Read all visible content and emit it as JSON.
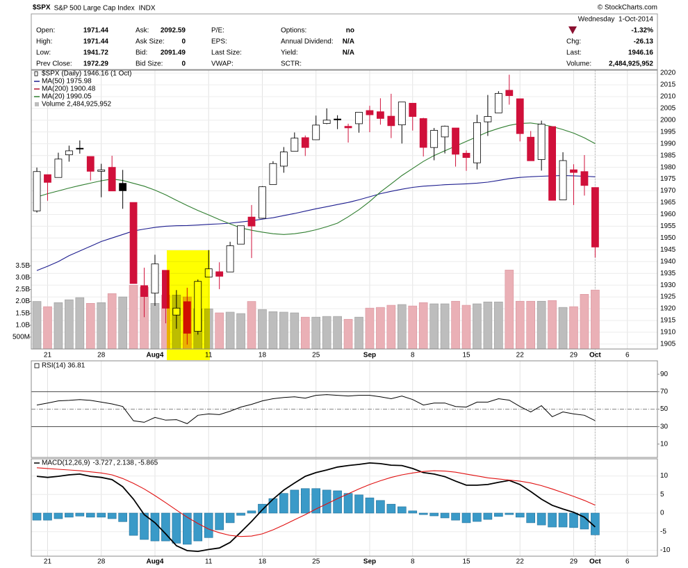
{
  "header": {
    "symbol": "$SPX",
    "name": "S&P 500 Large Cap Index",
    "exchange": "INDX",
    "credit": "© StockCharts.com"
  },
  "quote": {
    "columns": [
      [
        [
          "Open:",
          "1971.44"
        ],
        [
          "High:",
          "1971.44"
        ],
        [
          "Low:",
          "1941.72"
        ],
        [
          "Prev Close:",
          "1972.29"
        ]
      ],
      [
        [
          "Ask:",
          "2092.59"
        ],
        [
          "Ask Size:",
          "0"
        ],
        [
          "Bid:",
          "2091.49"
        ],
        [
          "Bid Size:",
          "0"
        ]
      ],
      [
        [
          "P/E:"
        ],
        [
          "EPS:"
        ],
        [
          "Last Size:"
        ],
        [
          "VWAP:"
        ]
      ],
      [
        [
          "Options:",
          "no"
        ],
        [
          "Annual Dividend:",
          "N/A"
        ],
        [
          "Yield:",
          "N/A"
        ],
        [
          "SCTR:"
        ]
      ]
    ],
    "date": "Wednesday  1-Oct-2014",
    "change_pct": "-1.32%",
    "stats": [
      [
        "Chg:",
        "-26.13"
      ],
      [
        "Last:",
        "1946.16"
      ],
      [
        "Volume:",
        "2,484,925,952"
      ]
    ]
  },
  "chart_data": [
    {
      "type": "candlestick",
      "legend": "$SPX (Daily) 1946.16 (1 Oct)",
      "open": [
        1961.5,
        1976.9,
        1975.7,
        1985.3,
        1988.1,
        1984.6,
        1978.3,
        1980.0,
        1973.2,
        1965.1,
        1929.8,
        1926.6,
        1936.3,
        1917.3,
        1923.0,
        1910.4,
        1933.4,
        1935.7,
        1935.6,
        1947.4,
        1958.9,
        1958.4,
        1972.7,
        1980.5,
        1986.8,
        1992.6,
        1991.7,
        1998.6,
        2000.5,
        1997.4,
        1998.5,
        2004.1,
        2003.6,
        2001.7,
        1998.0,
        2007.2,
        2000.7,
        1988.4,
        1992.9,
        1996.7,
        1986.0,
        1981.9,
        1999.3,
        2003.1,
        2012.7,
        2009.1,
        1992.8,
        1983.3,
        1997.3,
        1966.2,
        1978.96,
        1978.2,
        1971.44
      ],
      "high": [
        1979.9,
        1976.9,
        1986.2,
        1989.2,
        1991.4,
        1984.6,
        1981.5,
        1984.9,
        1978.9,
        1965.1,
        1937.4,
        1942.9,
        1936.3,
        1927.9,
        1928.9,
        1932.4,
        1944.9,
        1939.7,
        1948.4,
        1955.2,
        1964.0,
        1971.99,
        1982.6,
        1988.6,
        1994.8,
        1993.5,
        2001.95,
        2005.0,
        2002.1,
        1998.5,
        2003.4,
        2006.1,
        2009.3,
        2011.2,
        2007.7,
        2007.2,
        2001.0,
        1996.7,
        1997.7,
        1996.7,
        1987.2,
        2002.3,
        2010.7,
        2012.3,
        2019.3,
        2009.1,
        1995.4,
        1999.8,
        1997.3,
        1986.4,
        1981.3,
        1985.2,
        1971.44
      ],
      "low": [
        1960.8,
        1965.8,
        1975.7,
        1982.4,
        1985.8,
        1974.4,
        1967.3,
        1969.95,
        1962.4,
        1930.7,
        1916.4,
        1921.2,
        1913.8,
        1911.5,
        1904.8,
        1909.0,
        1933.4,
        1928.3,
        1935.6,
        1947.4,
        1941.5,
        1958.4,
        1972.7,
        1977.7,
        1986.8,
        1984.8,
        1991.7,
        1998.3,
        1996.2,
        1990.5,
        1994.7,
        1994.9,
        1998.1,
        1992.4,
        1990.1,
        1995.6,
        1984.6,
        1982.99,
        1985.9,
        1980.3,
        1978.5,
        1979.1,
        1993.3,
        2003.1,
        2006.6,
        1991.0,
        1982.8,
        1978.6,
        1965.99,
        1966.2,
        1964.0,
        1968.0,
        1941.72
      ],
      "close": [
        1978.2,
        1973.6,
        1983.5,
        1987.0,
        1987.98,
        1978.3,
        1978.9,
        1969.95,
        1970.07,
        1930.67,
        1925.15,
        1938.99,
        1920.2,
        1920.24,
        1909.57,
        1931.59,
        1936.92,
        1933.75,
        1946.72,
        1955.18,
        1955.06,
        1971.74,
        1981.6,
        1986.51,
        1992.37,
        1988.4,
        1997.92,
        2000.02,
        2000.12,
        1996.74,
        2003.37,
        2002.28,
        2000.72,
        1997.65,
        2007.71,
        2001.54,
        1988.44,
        1995.69,
        1997.45,
        1985.54,
        1984.13,
        1998.98,
        2001.57,
        2011.36,
        2010.4,
        1994.29,
        1982.77,
        1998.3,
        1965.99,
        1982.85,
        1977.8,
        1972.29,
        1946.16
      ],
      "overlays": [
        {
          "name": "MA(50) 1975.98",
          "color": "#1c1c8e",
          "values": [
            1936.2,
            1938,
            1940,
            1942.5,
            1944.5,
            1946.5,
            1948.5,
            1950,
            1951.5,
            1953,
            1953.8,
            1954.5,
            1955,
            1955.2,
            1955.3,
            1955.5,
            1955.8,
            1956,
            1956.3,
            1956.8,
            1957.3,
            1958,
            1958.6,
            1959.5,
            1960.4,
            1961.4,
            1962.4,
            1963.3,
            1964.2,
            1965.1,
            1966.2,
            1967.5,
            1968.8,
            1969.8,
            1970.7,
            1971.5,
            1972,
            1972.3,
            1972.6,
            1972.8,
            1973,
            1973.3,
            1973.7,
            1974.4,
            1975.2,
            1975.7,
            1976,
            1976.2,
            1976.4,
            1976.5,
            1976.4,
            1976.2,
            1975.98
          ]
        },
        {
          "name": "MA(200) 1900.48",
          "color": "#b0102a"
        },
        {
          "name": "MA(20) 1990.05",
          "color": "#2e7d2e",
          "values": [
            1967.4,
            1968.8,
            1970,
            1971.2,
            1972.3,
            1973.3,
            1974.3,
            1975,
            1974.4,
            1973.2,
            1972,
            1970.3,
            1968.3,
            1966,
            1963.8,
            1961.7,
            1959.8,
            1957.8,
            1956,
            1954.3,
            1953.3,
            1952.5,
            1951.8,
            1951.5,
            1951.8,
            1952.5,
            1953.5,
            1954.8,
            1956.3,
            1959,
            1962,
            1965.5,
            1969.5,
            1973,
            1976.5,
            1979.5,
            1982.5,
            1985,
            1987,
            1989,
            1991,
            1993,
            1995,
            1996.5,
            1997.8,
            1998.6,
            1998.8,
            1998.2,
            1997.3,
            1996,
            1994.5,
            1992.5,
            1990.05
          ]
        }
      ],
      "volume": {
        "name": "Volume 2,484,925,952",
        "axis": "y2",
        "up_color": "#bdbdbd",
        "down_color": "#eab0b6",
        "values": [
          2.0,
          1.78,
          1.95,
          2.07,
          2.16,
          1.92,
          1.95,
          2.33,
          2.19,
          2.68,
          2.6,
          1.92,
          2.27,
          2.27,
          2.19,
          1.69,
          1.69,
          1.52,
          1.55,
          1.49,
          2.0,
          1.66,
          1.57,
          1.55,
          1.52,
          1.34,
          1.34,
          1.37,
          1.37,
          1.25,
          1.34,
          1.72,
          1.75,
          1.84,
          1.87,
          1.81,
          1.95,
          1.9,
          1.9,
          2.01,
          1.84,
          1.9,
          1.98,
          1.98,
          3.32,
          2.01,
          2.01,
          2.01,
          2.04,
          1.75,
          1.78,
          2.3,
          2.48
        ]
      },
      "up_color": "#000000",
      "down_color": "#d0103a",
      "xlim": [
        -0.52,
        57.8
      ],
      "xticks": [
        {
          "value": 1,
          "label": "21"
        },
        {
          "value": 6,
          "label": "28"
        },
        {
          "value": 11,
          "label": "Aug4"
        },
        {
          "value": 16,
          "label": "11"
        },
        {
          "value": 21,
          "label": "18"
        },
        {
          "value": 26,
          "label": "25"
        },
        {
          "value": 31,
          "label": "Sep"
        },
        {
          "value": 35,
          "label": "8"
        },
        {
          "value": 40,
          "label": "15"
        },
        {
          "value": 45,
          "label": "22"
        },
        {
          "value": 50,
          "label": "29"
        },
        {
          "value": 52,
          "label": "Oct"
        },
        {
          "value": 55,
          "label": "6"
        }
      ],
      "ylim": [
        1902.9,
        2021.2
      ],
      "yticks": [
        1905,
        1910,
        1915,
        1920,
        1925,
        1930,
        1935,
        1940,
        1945,
        1950,
        1955,
        1960,
        1965,
        1970,
        1975,
        1980,
        1985,
        1990,
        1995,
        2000,
        2005,
        2010,
        2015,
        2020
      ],
      "y2lim": [
        0,
        11.72
      ],
      "y2ticks": [
        {
          "value": 0.5,
          "label": "500M"
        },
        {
          "value": 1.0,
          "label": "1.0B"
        },
        {
          "value": 1.5,
          "label": "1.5B"
        },
        {
          "value": 2.0,
          "label": "2.0B"
        },
        {
          "value": 2.5,
          "label": "2.5B"
        },
        {
          "value": 3.0,
          "label": "3.0B"
        },
        {
          "value": 3.5,
          "label": "3.5B"
        }
      ],
      "grid": true
    },
    {
      "type": "line",
      "legend": "RSI(14) 36.81",
      "color": "#000000",
      "values": [
        54.7,
        57,
        59.5,
        60,
        61,
        60,
        58,
        56,
        53,
        36.6,
        35,
        40.5,
        37.4,
        38,
        33.4,
        43,
        44.5,
        43.7,
        47.6,
        52.4,
        55.5,
        59.5,
        61.9,
        63.4,
        64.2,
        62.6,
        65.8,
        66.6,
        65.8,
        65,
        65.8,
        65.8,
        64.2,
        61.9,
        65,
        61,
        54.7,
        57,
        57,
        53,
        52.4,
        58,
        58,
        61.9,
        60.3,
        53,
        46.8,
        54,
        41.3,
        46.8,
        44.5,
        43,
        36.81
      ],
      "ylim": [
        -5.3,
        105.3
      ],
      "yticks": [
        10,
        30,
        50,
        70,
        90
      ],
      "overbought": 70,
      "oversold": 30,
      "midline": 50
    },
    {
      "type": "macd",
      "legend": "MACD(12,26,9)",
      "series": [
        {
          "name": "-3.727",
          "color": "#000000",
          "kind": "line",
          "values": [
            9.9,
            9.6,
            9.9,
            10.3,
            10.5,
            9.9,
            9.6,
            9.0,
            7.1,
            3.75,
            -0.4,
            -2.6,
            -5.6,
            -8.8,
            -10.1,
            -10.3,
            -9.8,
            -9.4,
            -7.9,
            -5.1,
            -2.25,
            0.9,
            3.75,
            6.2,
            8.1,
            9.9,
            10.9,
            11.6,
            12.4,
            12.8,
            13.1,
            13.5,
            13.3,
            12.9,
            12.8,
            12.0,
            10.9,
            10.5,
            9.8,
            8.6,
            7.5,
            7.5,
            7.7,
            8.3,
            8.8,
            7.7,
            5.8,
            3.75,
            2.1,
            1.1,
            0.2,
            -1.1,
            -3.727
          ]
        },
        {
          "name": "2.138",
          "color": "#e01010",
          "kind": "line",
          "values": [
            12.2,
            12.0,
            11.8,
            11.6,
            11.4,
            11.1,
            10.8,
            10.3,
            9.3,
            8.0,
            6.5,
            4.7,
            2.8,
            0.8,
            -1.1,
            -2.8,
            -4.3,
            -5.3,
            -6.0,
            -6.3,
            -6.2,
            -5.6,
            -4.5,
            -3.2,
            -1.8,
            -0.4,
            1.1,
            2.5,
            3.9,
            5.2,
            6.5,
            7.7,
            8.7,
            9.6,
            10.3,
            10.8,
            11.2,
            11.4,
            11.3,
            11.0,
            10.5,
            10.0,
            9.5,
            9.2,
            8.9,
            8.6,
            8.1,
            7.4,
            6.5,
            5.5,
            4.5,
            3.4,
            2.138
          ]
        },
        {
          "name": "-5.865",
          "color": "#3a9ac8",
          "kind": "bar",
          "values": [
            -1.9,
            -1.9,
            -1.5,
            -1.1,
            -0.8,
            -1.1,
            -1.1,
            -1.5,
            -2.3,
            -6.0,
            -7.1,
            -7.5,
            -7.5,
            -8.1,
            -8.4,
            -7.5,
            -6.6,
            -4.5,
            -2.6,
            -0.6,
            0.6,
            2.4,
            3.9,
            5.3,
            6.2,
            6.6,
            6.6,
            6.2,
            6.0,
            5.3,
            4.9,
            4.1,
            3.4,
            2.4,
            1.7,
            0.6,
            -0.4,
            -0.75,
            -1.3,
            -1.9,
            -2.6,
            -2.25,
            -1.7,
            -0.9,
            -0.4,
            -1.1,
            -2.6,
            -3.2,
            -3.75,
            -3.75,
            -3.9,
            -4.3,
            -5.865
          ]
        }
      ],
      "ylim": [
        -11.6,
        14.6
      ],
      "yticks": [
        -10,
        -5,
        0,
        5,
        10
      ]
    }
  ]
}
